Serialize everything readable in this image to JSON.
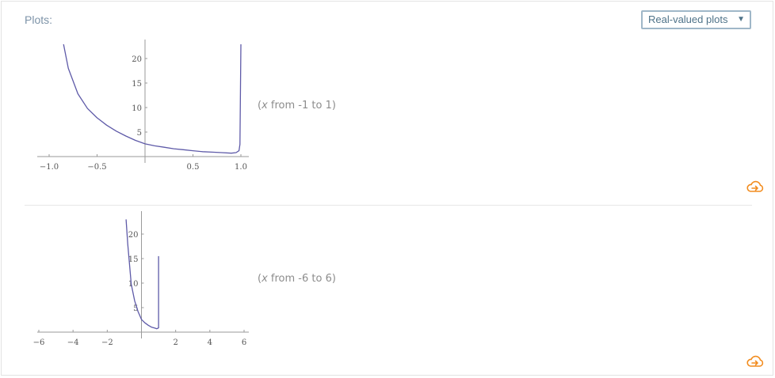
{
  "pod": {
    "title": "Plots:",
    "selector": {
      "selected": "Real-valued plots",
      "arrow_icon": "triangle-down-icon"
    }
  },
  "plots": [
    {
      "range_prefix": "(",
      "range_var": "x",
      "range_text": " from -1 to 1)",
      "action_icon": "cloud-export-icon"
    },
    {
      "range_prefix": "(",
      "range_var": "x",
      "range_text": " from -6 to 6)",
      "action_icon": "cloud-export-icon"
    }
  ],
  "colors": {
    "curve": "#5e5aa8",
    "axis": "#9a9a9a",
    "accent_orange": "#f28c1e",
    "title": "#7d93a8"
  },
  "chart_data": [
    {
      "type": "line",
      "x_ticks": [
        "-1.0",
        "-0.5",
        "0.5",
        "1.0"
      ],
      "y_ticks": [
        "5",
        "10",
        "15",
        "20"
      ],
      "xlim": [
        -1,
        1
      ],
      "ylim": [
        0,
        23
      ],
      "series": [
        {
          "x": [
            -0.85,
            -0.8,
            -0.7,
            -0.6,
            -0.5,
            -0.4,
            -0.3,
            -0.2,
            -0.1,
            0,
            0.1,
            0.2,
            0.3,
            0.4,
            0.5,
            0.6,
            0.7,
            0.8,
            0.9,
            0.95,
            0.98,
            0.99,
            1.0
          ],
          "y": [
            23,
            18,
            12.8,
            9.8,
            7.9,
            6.4,
            5.2,
            4.2,
            3.3,
            2.6,
            2.2,
            1.9,
            1.6,
            1.4,
            1.2,
            1.0,
            0.9,
            0.8,
            0.7,
            0.8,
            1.2,
            2.5,
            23
          ]
        }
      ]
    },
    {
      "type": "line",
      "x_ticks": [
        "-6",
        "-4",
        "-2",
        "2",
        "4",
        "6"
      ],
      "y_ticks": [
        "5",
        "10",
        "15",
        "20"
      ],
      "xlim": [
        -6.5,
        6.5
      ],
      "ylim": [
        0,
        23
      ],
      "series": [
        {
          "x": [
            -0.9,
            -0.8,
            -0.6,
            -0.4,
            -0.2,
            0,
            0.2,
            0.4,
            0.6,
            0.8,
            0.9,
            0.97,
            1.0
          ],
          "y": [
            23,
            18,
            9.8,
            6.4,
            4.2,
            2.6,
            1.9,
            1.4,
            1.0,
            0.8,
            0.7,
            0.8,
            0.8
          ]
        },
        {
          "x": [
            1.0,
            1.0
          ],
          "y": [
            0.8,
            15.5
          ]
        }
      ]
    }
  ]
}
